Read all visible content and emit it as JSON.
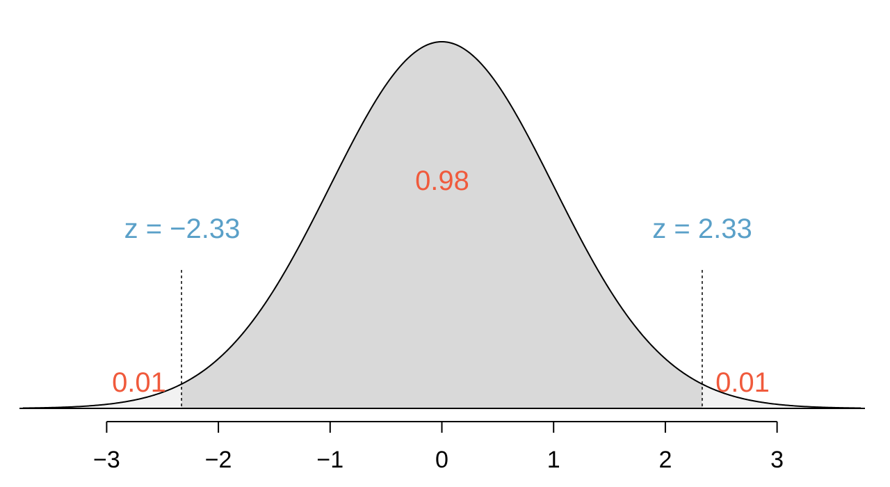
{
  "chart_data": {
    "type": "area",
    "distribution": "standard normal",
    "xlim": [
      -3.75,
      3.75
    ],
    "x_ticks": [
      -3,
      -2,
      -1,
      0,
      1,
      2,
      3
    ],
    "x_tick_labels": [
      "−3",
      "−2",
      "−1",
      "0",
      "1",
      "2",
      "3"
    ],
    "shaded_region": [
      -2.33,
      2.33
    ],
    "cutoffs": [
      -2.33,
      2.33
    ],
    "annotations": {
      "center_area": "0.98",
      "left_tail_area": "0.01",
      "right_tail_area": "0.01",
      "left_cutoff": "z = −2.33",
      "right_cutoff": "z = 2.33"
    },
    "colors": {
      "curve": "#000000",
      "center_fill": "#d9d9d9",
      "tail_fill": "#f2f2f2",
      "area_text": "#f05a3c",
      "cutoff_text": "#5aa0c8"
    },
    "grid": false
  }
}
